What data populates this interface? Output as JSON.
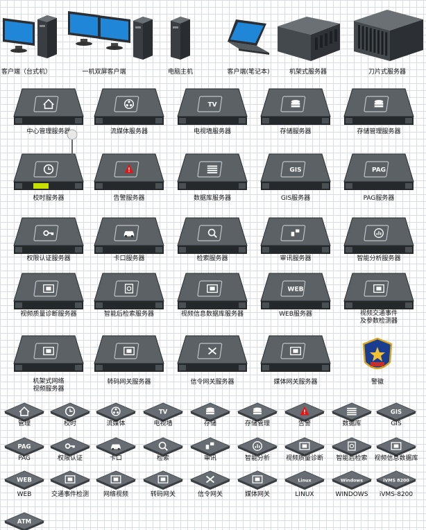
{
  "stencil": {
    "row1": [
      {
        "name": "client-desktop",
        "label": "客户端（台式机）"
      },
      {
        "name": "dual-screen-client",
        "label": "一机双屏客户端"
      },
      {
        "name": "computer-host",
        "label": "电脑主机"
      },
      {
        "name": "client-laptop",
        "label": "客户端(笔记本)"
      },
      {
        "name": "rack-server",
        "label": "机架式服务器"
      },
      {
        "name": "blade-server",
        "label": "刀片式服务器"
      }
    ],
    "servers": [
      {
        "name": "central-mgmt-server",
        "label": "中心管理服务器",
        "glyph": "home"
      },
      {
        "name": "streaming-server",
        "label": "流媒体服务器",
        "glyph": "reel"
      },
      {
        "name": "tv-wall-server",
        "label": "电视墙服务器",
        "glyph": "TV"
      },
      {
        "name": "storage-server",
        "label": "存储服务器",
        "glyph": "disk"
      },
      {
        "name": "storage-mgmt-server",
        "label": "存储管理服务器",
        "glyph": "disk"
      },
      {
        "name": "timing-server",
        "label": "校时服务器",
        "glyph": "clock"
      },
      {
        "name": "alarm-server",
        "label": "告警服务器",
        "glyph": "alarm"
      },
      {
        "name": "database-server",
        "label": "数据库服务器",
        "glyph": "db"
      },
      {
        "name": "gis-server",
        "label": "GIS服务器",
        "glyph": "GIS"
      },
      {
        "name": "pag-server",
        "label": "PAG服务器",
        "glyph": "PAG"
      },
      {
        "name": "auth-server",
        "label": "权限认证服务器",
        "glyph": "key"
      },
      {
        "name": "checkpoint-server",
        "label": "卡口服务器",
        "glyph": "car"
      },
      {
        "name": "search-server",
        "label": "检索服务器",
        "glyph": "search"
      },
      {
        "name": "audit-server",
        "label": "审讯服务器",
        "glyph": "audit"
      },
      {
        "name": "analytics-server",
        "label": "智能分析服务器",
        "glyph": "analysis"
      },
      {
        "name": "video-diagnosis-server",
        "label": "视频质量诊断服务器",
        "glyph": "film"
      },
      {
        "name": "smart-retrieval-server",
        "label": "智能后检索服务器",
        "glyph": "doc"
      },
      {
        "name": "video-db-server",
        "label": "视频信息数据库服务器",
        "glyph": "film"
      },
      {
        "name": "web-server",
        "label": "WEB服务器",
        "glyph": "WEB"
      },
      {
        "name": "traffic-event-server",
        "label": "视频交通事件",
        "label2": "及参数检测器",
        "glyph": "film"
      },
      {
        "name": "network-video-server",
        "label": "机架式网络",
        "label2": "视频服务器",
        "glyph": "film"
      },
      {
        "name": "transcode-gateway-server",
        "label": "转码网关服务器",
        "glyph": "film"
      },
      {
        "name": "signaling-gateway-server",
        "label": "信令网关服务器",
        "glyph": "signal"
      },
      {
        "name": "media-gateway-server",
        "label": "媒体网关服务器",
        "glyph": "film"
      }
    ],
    "badge": {
      "label": "警徽"
    },
    "icons": [
      {
        "name": "mgmt",
        "label": "管理",
        "glyph": "home"
      },
      {
        "name": "timing",
        "label": "校时",
        "glyph": "clock"
      },
      {
        "name": "streaming",
        "label": "流媒体",
        "glyph": "reel"
      },
      {
        "name": "tv-wall",
        "label": "电视墙",
        "glyph": "TV"
      },
      {
        "name": "storage",
        "label": "存储",
        "glyph": "disk"
      },
      {
        "name": "storage-mgmt",
        "label": "存储管理",
        "glyph": "disk"
      },
      {
        "name": "alarm",
        "label": "告警",
        "glyph": "alarm"
      },
      {
        "name": "database",
        "label": "数据库",
        "glyph": "db"
      },
      {
        "name": "gis",
        "label": "GIS",
        "glyph": "GIS"
      },
      {
        "name": "pag",
        "label": "PAG",
        "glyph": "PAG"
      },
      {
        "name": "auth",
        "label": "权限认证",
        "glyph": "key"
      },
      {
        "name": "checkpoint",
        "label": "卡口",
        "glyph": "car"
      },
      {
        "name": "search",
        "label": "检索",
        "glyph": "search"
      },
      {
        "name": "audit",
        "label": "审讯",
        "glyph": "audit"
      },
      {
        "name": "analytics",
        "label": "智能分析",
        "glyph": "analysis"
      },
      {
        "name": "video-diagnosis",
        "label": "视频质量诊断",
        "glyph": "film"
      },
      {
        "name": "smart-retrieval",
        "label": "智能后检索",
        "glyph": "doc"
      },
      {
        "name": "video-db",
        "label": "视频信息数据库",
        "glyph": "film"
      },
      {
        "name": "web",
        "label": "WEB",
        "glyph": "WEB"
      },
      {
        "name": "traffic-event",
        "label": "交通事件检测",
        "glyph": "film"
      },
      {
        "name": "network-video",
        "label": "网络视频",
        "glyph": "film"
      },
      {
        "name": "transcode-gateway",
        "label": "转码网关",
        "glyph": "film"
      },
      {
        "name": "signaling-gateway",
        "label": "信令网关",
        "glyph": "signal"
      },
      {
        "name": "media-gateway",
        "label": "媒体网关",
        "glyph": "film"
      },
      {
        "name": "linux",
        "label": "LINUX",
        "glyph": "Linux"
      },
      {
        "name": "windows",
        "label": "WINDOWS",
        "glyph": "Windows"
      },
      {
        "name": "ivms",
        "label": "iVMS-8200",
        "glyph": "iVMS 8200"
      },
      {
        "name": "atm",
        "label": "",
        "glyph": "ATM"
      }
    ]
  },
  "colors": {
    "device": "#3e4347",
    "device_dark": "#26292c",
    "device_top": "#5b6165",
    "screen": "#1f86d8",
    "label_bg": "#ffffff"
  }
}
